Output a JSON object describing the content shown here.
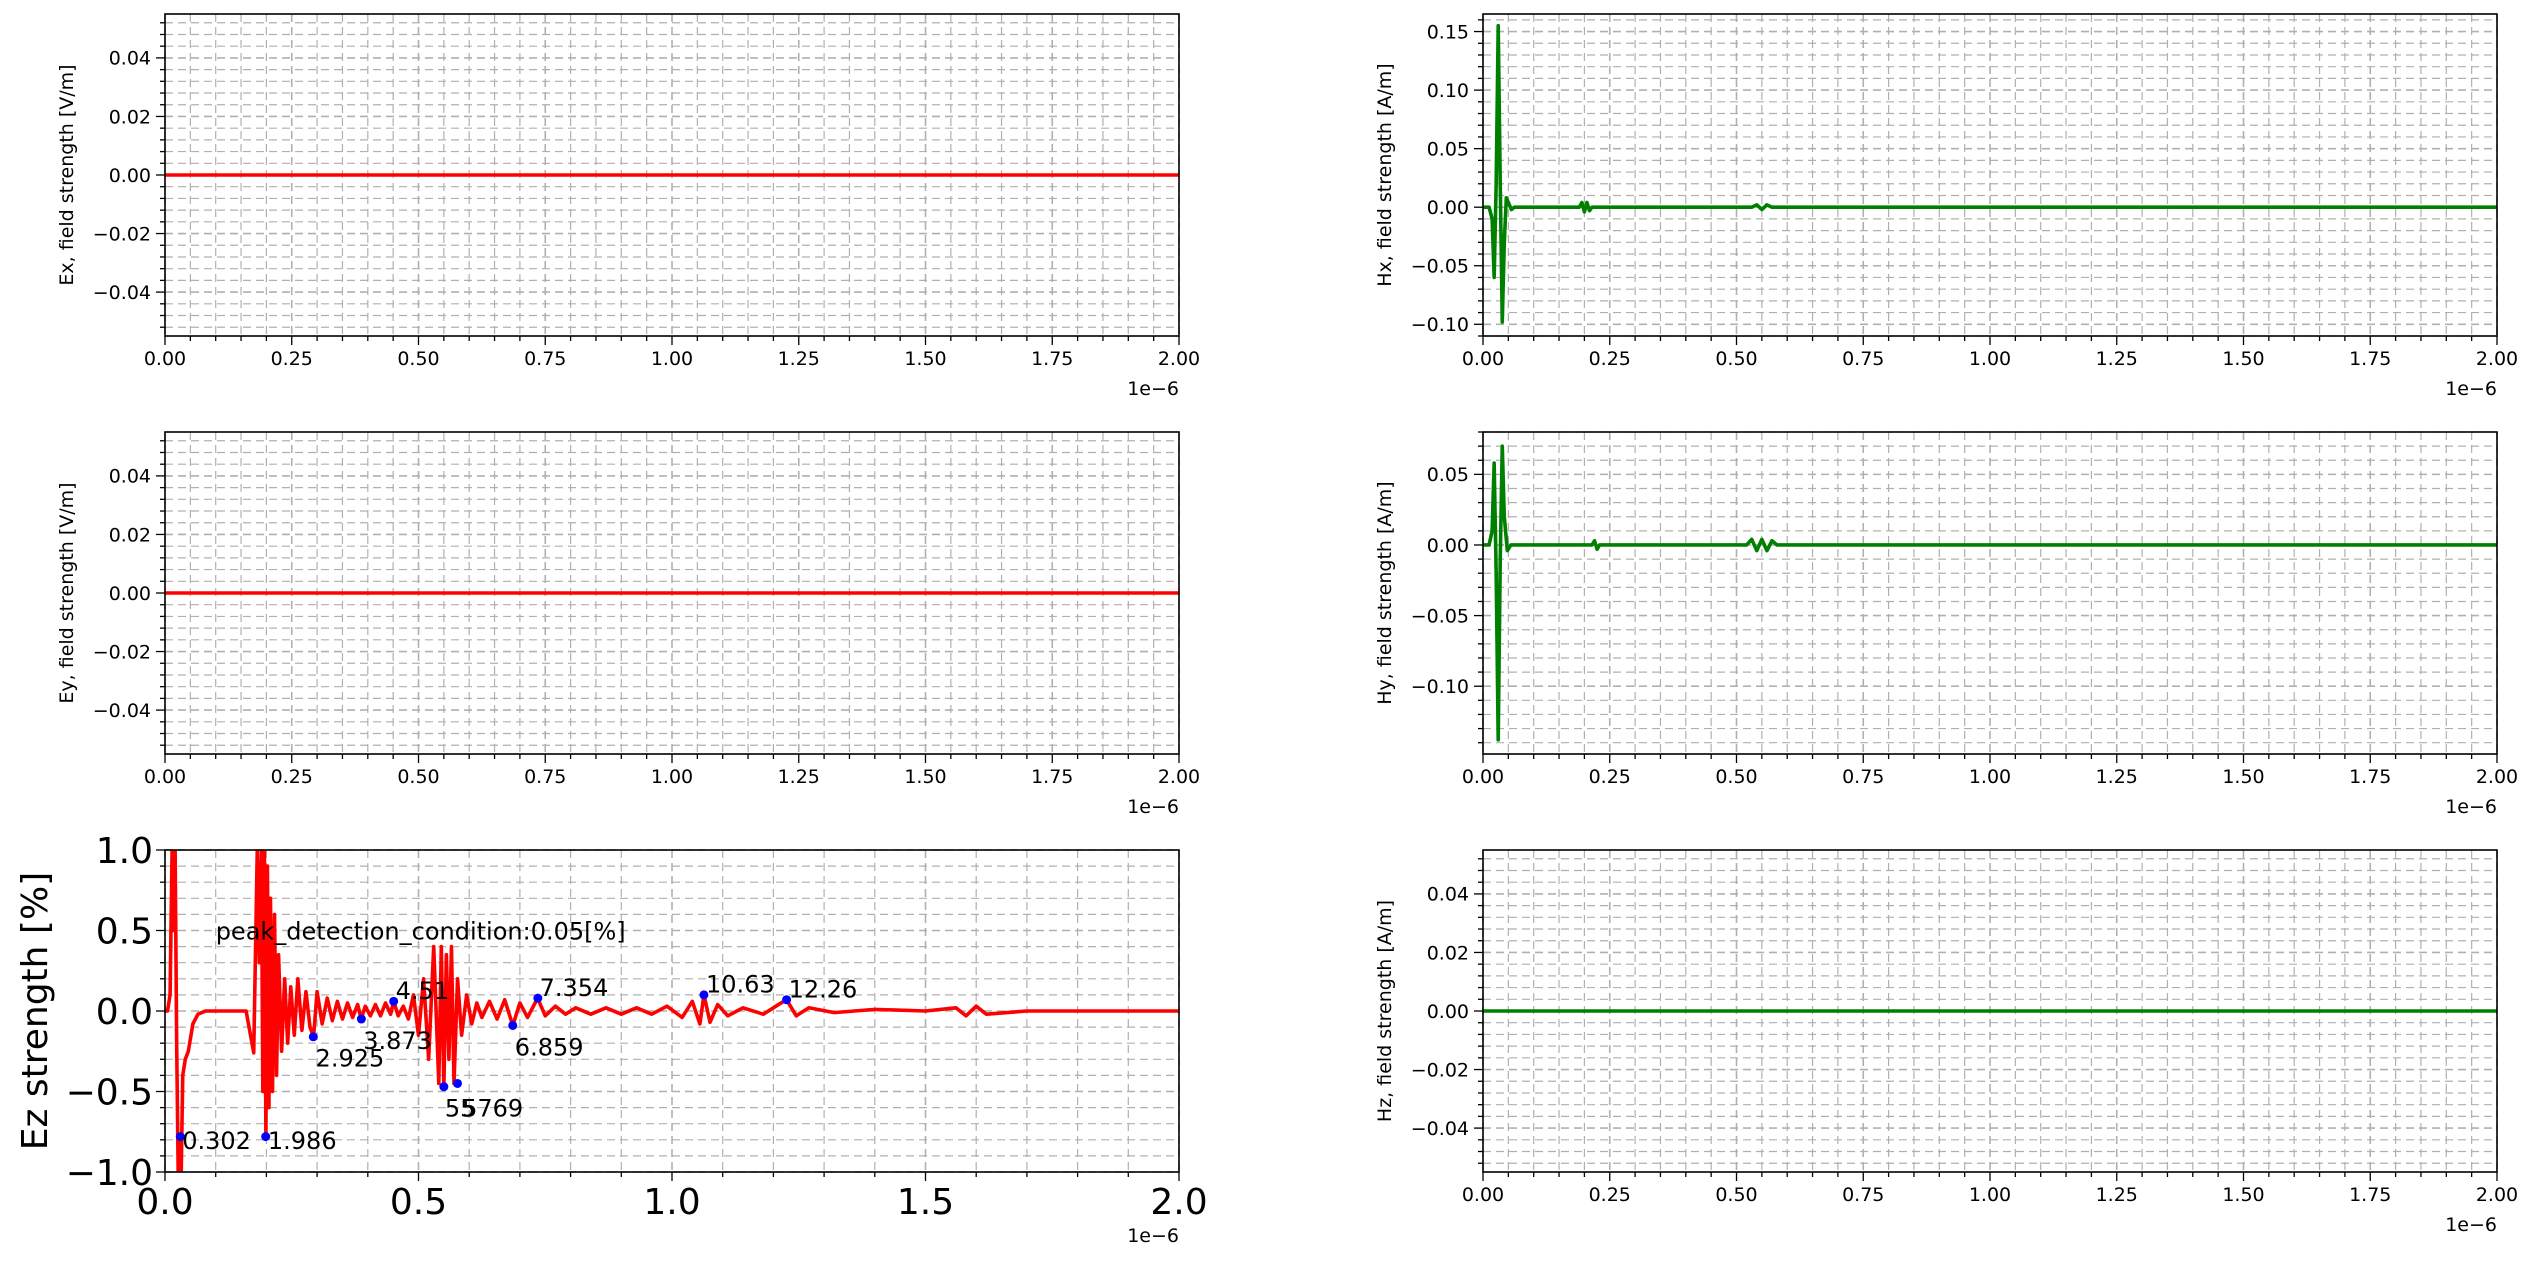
{
  "chart_data": [
    {
      "id": "ex",
      "type": "line",
      "ylabel": "Ex, field strength [V/m]",
      "xlim": [
        0,
        2e-06
      ],
      "ylim": [
        -0.055,
        0.055
      ],
      "x_ticks": [
        "0.00",
        "0.25",
        "0.50",
        "0.75",
        "1.00",
        "1.25",
        "1.50",
        "1.75",
        "2.00"
      ],
      "y_ticks": [
        {
          "v": -0.04,
          "label": "−0.04"
        },
        {
          "v": -0.02,
          "label": "−0.02"
        },
        {
          "v": 0.0,
          "label": "0.00"
        },
        {
          "v": 0.02,
          "label": "0.02"
        },
        {
          "v": 0.04,
          "label": "0.04"
        }
      ],
      "offset_label": "1e−6",
      "grid": true,
      "series": [
        {
          "color": "#ff0000",
          "x": [
            0,
            2e-06
          ],
          "y": [
            0,
            0
          ]
        }
      ]
    },
    {
      "id": "hx",
      "type": "line",
      "ylabel": "Hx, field strength [A/m]",
      "xlim": [
        0,
        2e-06
      ],
      "ylim": [
        -0.11,
        0.165
      ],
      "x_ticks": [
        "0.00",
        "0.25",
        "0.50",
        "0.75",
        "1.00",
        "1.25",
        "1.50",
        "1.75",
        "2.00"
      ],
      "y_ticks": [
        {
          "v": -0.1,
          "label": "−0.10"
        },
        {
          "v": -0.05,
          "label": "−0.05"
        },
        {
          "v": 0.0,
          "label": "0.00"
        },
        {
          "v": 0.05,
          "label": "0.05"
        },
        {
          "v": 0.1,
          "label": "0.10"
        },
        {
          "v": 0.15,
          "label": "0.15"
        }
      ],
      "offset_label": "1e−6",
      "grid": true,
      "series": [
        {
          "color": "#008000",
          "x": [
            0,
            1.2e-08,
            1.8e-08,
            2.2e-08,
            2.6e-08,
            3e-08,
            3.4e-08,
            3.8e-08,
            4.2e-08,
            4.6e-08,
            5e-08,
            5.6e-08,
            6.2e-08,
            1.9e-07,
            1.95e-07,
            2e-07,
            2.05e-07,
            2.1e-07,
            2.15e-07,
            5.3e-07,
            5.4e-07,
            5.5e-07,
            5.6e-07,
            5.7e-07,
            2e-06
          ],
          "y": [
            0,
            0,
            -0.01,
            -0.06,
            0.02,
            0.155,
            0.02,
            -0.098,
            -0.03,
            0.008,
            0.004,
            -0.002,
            0,
            0,
            0.004,
            -0.004,
            0.004,
            -0.003,
            0,
            0,
            0.002,
            -0.002,
            0.002,
            0,
            0
          ]
        }
      ]
    },
    {
      "id": "ey",
      "type": "line",
      "ylabel": "Ey, field strength [V/m]",
      "xlim": [
        0,
        2e-06
      ],
      "ylim": [
        -0.055,
        0.055
      ],
      "x_ticks": [
        "0.00",
        "0.25",
        "0.50",
        "0.75",
        "1.00",
        "1.25",
        "1.50",
        "1.75",
        "2.00"
      ],
      "y_ticks": [
        {
          "v": -0.04,
          "label": "−0.04"
        },
        {
          "v": -0.02,
          "label": "−0.02"
        },
        {
          "v": 0.0,
          "label": "0.00"
        },
        {
          "v": 0.02,
          "label": "0.02"
        },
        {
          "v": 0.04,
          "label": "0.04"
        }
      ],
      "offset_label": "1e−6",
      "grid": true,
      "series": [
        {
          "color": "#ff0000",
          "x": [
            0,
            2e-06
          ],
          "y": [
            0,
            0
          ]
        }
      ]
    },
    {
      "id": "hy",
      "type": "line",
      "ylabel": "Hy, field strength [A/m]",
      "xlim": [
        0,
        2e-06
      ],
      "ylim": [
        -0.148,
        0.08
      ],
      "x_ticks": [
        "0.00",
        "0.25",
        "0.50",
        "0.75",
        "1.00",
        "1.25",
        "1.50",
        "1.75",
        "2.00"
      ],
      "y_ticks": [
        {
          "v": -0.1,
          "label": "−0.10"
        },
        {
          "v": -0.05,
          "label": "−0.05"
        },
        {
          "v": 0.0,
          "label": "0.00"
        },
        {
          "v": 0.05,
          "label": "0.05"
        }
      ],
      "offset_label": "1e−6",
      "grid": true,
      "series": [
        {
          "color": "#008000",
          "x": [
            0,
            1.2e-08,
            1.8e-08,
            2.2e-08,
            2.6e-08,
            3e-08,
            3.4e-08,
            3.8e-08,
            4.2e-08,
            4.8e-08,
            5.5e-08,
            2.15e-07,
            2.2e-07,
            2.25e-07,
            2.3e-07,
            5.2e-07,
            5.3e-07,
            5.4e-07,
            5.5e-07,
            5.6e-07,
            5.7e-07,
            5.8e-07,
            2e-06
          ],
          "y": [
            0,
            0,
            0.01,
            0.058,
            -0.02,
            -0.138,
            -0.01,
            0.07,
            0.02,
            -0.004,
            0,
            0,
            0.003,
            -0.003,
            0,
            0,
            0.004,
            -0.004,
            0.004,
            -0.004,
            0.003,
            0,
            0
          ]
        }
      ]
    },
    {
      "id": "ez",
      "type": "line",
      "ylabel": "Ez strength [%]",
      "xlim": [
        0,
        2e-06
      ],
      "ylim": [
        -1.0,
        1.0
      ],
      "x_ticks": [
        "0.0",
        "0.5",
        "1.0",
        "1.5",
        "2.0"
      ],
      "x_tick_values": [
        0,
        5e-07,
        1e-06,
        1.5e-06,
        2e-06
      ],
      "y_ticks": [
        {
          "v": -1.0,
          "label": "−1.0"
        },
        {
          "v": -0.5,
          "label": "−0.5"
        },
        {
          "v": 0.0,
          "label": "0.0"
        },
        {
          "v": 0.5,
          "label": "0.5"
        },
        {
          "v": 1.0,
          "label": "1.0"
        }
      ],
      "offset_label": "1e−6",
      "grid": true,
      "annotations": [
        {
          "text": "peak_detection_condition:0.05[%]",
          "x": 1e-07,
          "y": 0.5
        }
      ],
      "peaks": [
        {
          "label": "0.302",
          "x": 3.02e-08,
          "y": -0.78,
          "tx": 3e-08,
          "ty": -0.8
        },
        {
          "label": "1.986",
          "x": 1.986e-07,
          "y": -0.78,
          "tx": 1.99e-07,
          "ty": -0.8
        },
        {
          "label": "2.925",
          "x": 2.925e-07,
          "y": -0.16,
          "tx": 2.93e-07,
          "ty": -0.29
        },
        {
          "label": "3.873",
          "x": 3.873e-07,
          "y": -0.05,
          "tx": 3.87e-07,
          "ty": -0.18
        },
        {
          "label": "4.51",
          "x": 4.51e-07,
          "y": 0.06,
          "tx": 4.51e-07,
          "ty": 0.13
        },
        {
          "label": "55",
          "x": 5.5e-07,
          "y": -0.47,
          "tx": 5.48e-07,
          "ty": -0.6
        },
        {
          "label": "5769",
          "x": 5.769e-07,
          "y": -0.45,
          "tx": 5.82e-07,
          "ty": -0.6
        },
        {
          "label": "6.859",
          "x": 6.859e-07,
          "y": -0.09,
          "tx": 6.86e-07,
          "ty": -0.22
        },
        {
          "label": "7.354",
          "x": 7.354e-07,
          "y": 0.08,
          "tx": 7.35e-07,
          "ty": 0.15
        },
        {
          "label": "10.63",
          "x": 1.063e-06,
          "y": 0.1,
          "tx": 1.063e-06,
          "ty": 0.17
        },
        {
          "label": "12.26",
          "x": 1.226e-06,
          "y": 0.07,
          "tx": 1.226e-06,
          "ty": 0.14
        }
      ],
      "series": [
        {
          "color": "#ff0000",
          "x": [
            0,
            5e-09,
            1e-08,
            1.4e-08,
            1.7e-08,
            2e-08,
            2.3e-08,
            2.6e-08,
            2.9e-08,
            3.2e-08,
            3.5e-08,
            4e-08,
            4.6e-08,
            5.5e-08,
            6.5e-08,
            8e-08,
            1e-07,
            1.3e-07,
            1.6e-07,
            1.75e-07,
            1.82e-07,
            1.86e-07,
            1.9e-07,
            1.93e-07,
            1.96e-07,
            1.99e-07,
            2.02e-07,
            2.05e-07,
            2.08e-07,
            2.12e-07,
            2.16e-07,
            2.2e-07,
            2.24e-07,
            2.3e-07,
            2.36e-07,
            2.42e-07,
            2.48e-07,
            2.55e-07,
            2.62e-07,
            2.7e-07,
            2.78e-07,
            2.86e-07,
            2.93e-07,
            3e-07,
            3.1e-07,
            3.2e-07,
            3.3e-07,
            3.4e-07,
            3.5e-07,
            3.6e-07,
            3.7e-07,
            3.8e-07,
            3.87e-07,
            3.95e-07,
            4.05e-07,
            4.15e-07,
            4.25e-07,
            4.35e-07,
            4.45e-07,
            4.51e-07,
            4.6e-07,
            4.7e-07,
            4.8e-07,
            4.9e-07,
            5e-07,
            5.1e-07,
            5.2e-07,
            5.3e-07,
            5.4e-07,
            5.45e-07,
            5.5e-07,
            5.55e-07,
            5.6e-07,
            5.65e-07,
            5.7e-07,
            5.77e-07,
            5.85e-07,
            5.95e-07,
            6.05e-07,
            6.15e-07,
            6.25e-07,
            6.4e-07,
            6.55e-07,
            6.7e-07,
            6.86e-07,
            7e-07,
            7.15e-07,
            7.35e-07,
            7.5e-07,
            7.7e-07,
            7.9e-07,
            8.1e-07,
            8.4e-07,
            8.7e-07,
            9e-07,
            9.3e-07,
            9.6e-07,
            9.9e-07,
            1.02e-06,
            1.04e-06,
            1.055e-06,
            1.063e-06,
            1.075e-06,
            1.09e-06,
            1.11e-06,
            1.14e-06,
            1.18e-06,
            1.21e-06,
            1.226e-06,
            1.245e-06,
            1.27e-06,
            1.32e-06,
            1.4e-06,
            1.5e-06,
            1.56e-06,
            1.58e-06,
            1.6e-06,
            1.62e-06,
            1.7e-06,
            2e-06
          ],
          "y": [
            0,
            0,
            0.1,
            1.0,
            0.5,
            1.0,
            -0.2,
            -1.0,
            -0.78,
            -1.0,
            -0.4,
            -0.3,
            -0.25,
            -0.08,
            -0.02,
            0,
            0,
            0,
            0,
            -0.26,
            1.0,
            0.3,
            1.0,
            -0.5,
            1.0,
            -0.78,
            0.9,
            -0.6,
            0.7,
            -0.5,
            0.6,
            -0.4,
            0.35,
            -0.25,
            0.2,
            -0.2,
            0.15,
            -0.15,
            0.2,
            -0.12,
            0.12,
            -0.1,
            -0.16,
            0.12,
            -0.08,
            0.08,
            -0.06,
            0.06,
            -0.05,
            0.05,
            -0.04,
            0.04,
            -0.05,
            0.03,
            -0.03,
            0.04,
            -0.03,
            0.05,
            -0.02,
            0.06,
            -0.03,
            0.03,
            -0.05,
            0.1,
            -0.15,
            0.2,
            -0.3,
            0.4,
            -0.45,
            0.4,
            -0.47,
            0.35,
            -0.3,
            0.4,
            -0.45,
            0.2,
            -0.15,
            0.1,
            -0.08,
            0.05,
            -0.04,
            0.06,
            -0.05,
            0.07,
            -0.09,
            0.05,
            -0.04,
            0.08,
            -0.03,
            0.03,
            -0.02,
            0.02,
            -0.02,
            0.02,
            -0.02,
            0.02,
            -0.02,
            0.03,
            -0.04,
            0.06,
            -0.08,
            0.1,
            -0.07,
            0.04,
            -0.03,
            0.02,
            -0.02,
            0.04,
            0.07,
            -0.03,
            0.02,
            -0.01,
            0.01,
            0,
            0.02,
            -0.03,
            0.03,
            -0.02,
            0,
            0
          ]
        }
      ]
    },
    {
      "id": "hz",
      "type": "line",
      "ylabel": "Hz, field strength [A/m]",
      "xlim": [
        0,
        2e-06
      ],
      "ylim": [
        -0.055,
        0.055
      ],
      "x_ticks": [
        "0.00",
        "0.25",
        "0.50",
        "0.75",
        "1.00",
        "1.25",
        "1.50",
        "1.75",
        "2.00"
      ],
      "y_ticks": [
        {
          "v": -0.04,
          "label": "−0.04"
        },
        {
          "v": -0.02,
          "label": "−0.02"
        },
        {
          "v": 0.0,
          "label": "0.00"
        },
        {
          "v": 0.02,
          "label": "0.02"
        },
        {
          "v": 0.04,
          "label": "0.04"
        }
      ],
      "offset_label": "1e−6",
      "grid": true,
      "series": [
        {
          "color": "#008000",
          "x": [
            0,
            2e-06
          ],
          "y": [
            0,
            0
          ]
        }
      ]
    }
  ]
}
